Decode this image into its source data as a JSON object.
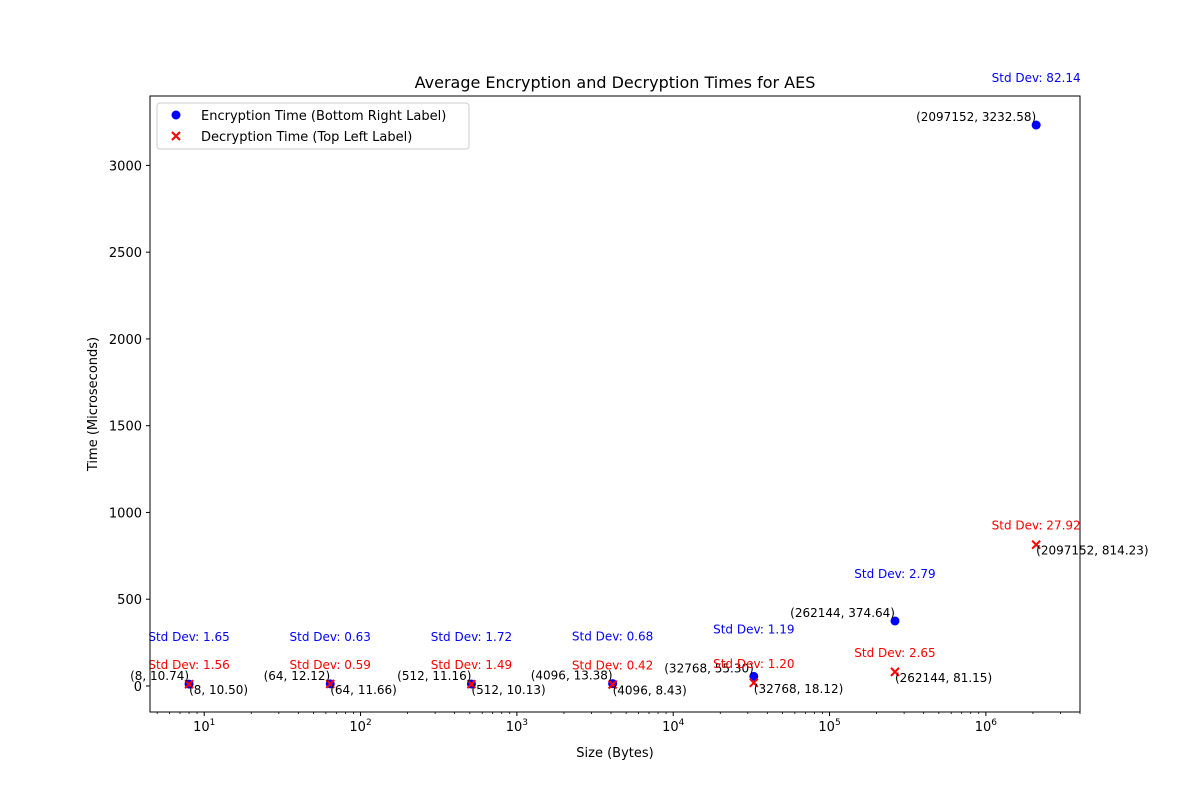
{
  "chart_data": {
    "type": "scatter",
    "title": "Average Encryption and Decryption Times for AES",
    "xlabel": "Size (Bytes)",
    "ylabel": "Time (Microseconds)",
    "x_scale": "log",
    "xlim": [
      4.5,
      4000000
    ],
    "ylim": [
      -150,
      3400
    ],
    "y_ticks": [
      0,
      500,
      1000,
      1500,
      2000,
      2500,
      3000
    ],
    "x_ticks": [
      {
        "value": 10,
        "base": "10",
        "exp": "1"
      },
      {
        "value": 100,
        "base": "10",
        "exp": "2"
      },
      {
        "value": 1000,
        "base": "10",
        "exp": "3"
      },
      {
        "value": 10000,
        "base": "10",
        "exp": "4"
      },
      {
        "value": 100000,
        "base": "10",
        "exp": "5"
      },
      {
        "value": 1000000,
        "base": "10",
        "exp": "6"
      }
    ],
    "grid": false,
    "legend_position": "top-left",
    "legend": [
      {
        "label": "Encryption Time (Bottom Right Label)",
        "marker": "circle",
        "color": "#0000ff"
      },
      {
        "label": "Decryption Time (Top Left Label)",
        "marker": "x",
        "color": "#ff0000"
      }
    ],
    "series": [
      {
        "name": "Encryption Time (Bottom Right Label)",
        "marker": "circle",
        "color": "#0000ff",
        "points": [
          {
            "x": 8,
            "y": 10.74,
            "label": "(8, 10.74)",
            "std_label": "Std Dev: 1.65"
          },
          {
            "x": 64,
            "y": 12.12,
            "label": "(64, 12.12)",
            "std_label": "Std Dev: 0.63"
          },
          {
            "x": 512,
            "y": 11.16,
            "label": "(512, 11.16)",
            "std_label": "Std Dev: 1.72"
          },
          {
            "x": 4096,
            "y": 13.38,
            "label": "(4096, 13.38)",
            "std_label": "Std Dev: 0.68"
          },
          {
            "x": 32768,
            "y": 55.3,
            "label": "(32768, 55.30)",
            "std_label": "Std Dev: 1.19"
          },
          {
            "x": 262144,
            "y": 374.64,
            "label": "(262144, 374.64)",
            "std_label": "Std Dev: 2.79"
          },
          {
            "x": 2097152,
            "y": 3232.58,
            "label": "(2097152, 3232.58)",
            "std_label": "Std Dev: 82.14"
          }
        ]
      },
      {
        "name": "Decryption Time (Top Left Label)",
        "marker": "x",
        "color": "#ff0000",
        "points": [
          {
            "x": 8,
            "y": 10.5,
            "label": "(8, 10.50)",
            "std_label": "Std Dev: 1.56"
          },
          {
            "x": 64,
            "y": 11.66,
            "label": "(64, 11.66)",
            "std_label": "Std Dev: 0.59"
          },
          {
            "x": 512,
            "y": 10.13,
            "label": "(512, 10.13)",
            "std_label": "Std Dev: 1.49"
          },
          {
            "x": 4096,
            "y": 8.43,
            "label": "(4096, 8.43)",
            "std_label": "Std Dev: 0.42"
          },
          {
            "x": 32768,
            "y": 18.12,
            "label": "(32768, 18.12)",
            "std_label": "Std Dev: 1.20"
          },
          {
            "x": 262144,
            "y": 81.15,
            "label": "(262144, 81.15)",
            "std_label": "Std Dev: 2.65"
          },
          {
            "x": 2097152,
            "y": 814.23,
            "label": "(2097152, 814.23)",
            "std_label": "Std Dev: 27.92"
          }
        ]
      }
    ]
  }
}
